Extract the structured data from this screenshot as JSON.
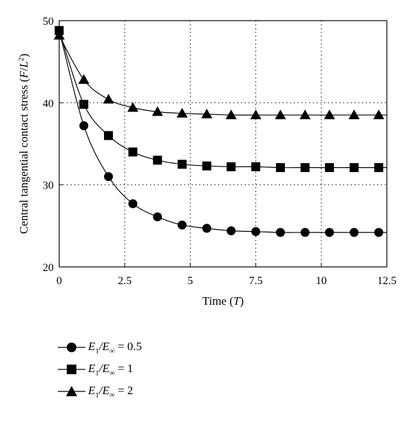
{
  "chart_data": {
    "type": "line",
    "title": "",
    "xlabel_text": "Time (",
    "xlabel_italic": "T",
    "xlabel_close": ")",
    "ylabel_text": "Central tangential contact stress (",
    "ylabel_italic": "F",
    "ylabel_slash": "/",
    "ylabel_italic2": "L",
    "ylabel_sup": "2",
    "ylabel_close": ")",
    "xlim": [
      0,
      12.5
    ],
    "ylim": [
      20,
      50
    ],
    "xticks": [
      0,
      2.5,
      5,
      7.5,
      10,
      12.5
    ],
    "xtick_labels": [
      "0",
      "2.5",
      "5",
      "7.5",
      "10",
      "12.5"
    ],
    "yticks": [
      20,
      30,
      40,
      50
    ],
    "ytick_labels": [
      "20",
      "30",
      "40",
      "50"
    ],
    "grid": "dotted at interior ticks",
    "legend_position": "bottom-left, below plot",
    "series": [
      {
        "name": "E1/E∞ = 0.5",
        "marker": "circle",
        "x": [
          0,
          0.94,
          1.88,
          2.81,
          3.75,
          4.69,
          5.63,
          6.56,
          7.5,
          8.44,
          9.38,
          10.31,
          11.25,
          12.19
        ],
        "y": [
          48.8,
          37.2,
          31.0,
          27.7,
          26.1,
          25.1,
          24.7,
          24.4,
          24.3,
          24.2,
          24.2,
          24.2,
          24.2,
          24.2
        ]
      },
      {
        "name": "E1/E∞ = 1",
        "marker": "square",
        "x": [
          0,
          0.94,
          1.88,
          2.81,
          3.75,
          4.69,
          5.63,
          6.56,
          7.5,
          8.44,
          9.38,
          10.31,
          11.25,
          12.19
        ],
        "y": [
          48.8,
          39.8,
          36.0,
          34.0,
          33.0,
          32.5,
          32.3,
          32.2,
          32.2,
          32.1,
          32.1,
          32.1,
          32.1,
          32.1
        ]
      },
      {
        "name": "E1/E∞ = 2",
        "marker": "triangle",
        "x": [
          0,
          0.94,
          1.88,
          2.81,
          3.75,
          4.69,
          5.63,
          6.56,
          7.5,
          8.44,
          9.38,
          10.31,
          11.25,
          12.19
        ],
        "y": [
          48.2,
          42.8,
          40.4,
          39.4,
          38.9,
          38.7,
          38.6,
          38.5,
          38.5,
          38.5,
          38.5,
          38.5,
          38.5,
          38.5
        ]
      }
    ]
  },
  "legend": {
    "items": [
      {
        "prefix": "E",
        "sub1": "1",
        "mid": "/E",
        "sub2": "∞",
        "suffix": " = 0.5",
        "marker": "circle"
      },
      {
        "prefix": "E",
        "sub1": "1",
        "mid": "/E",
        "sub2": "∞",
        "suffix": " = 1",
        "marker": "square"
      },
      {
        "prefix": "E",
        "sub1": "1",
        "mid": "/E",
        "sub2": "∞",
        "suffix": " = 2",
        "marker": "triangle"
      }
    ]
  }
}
